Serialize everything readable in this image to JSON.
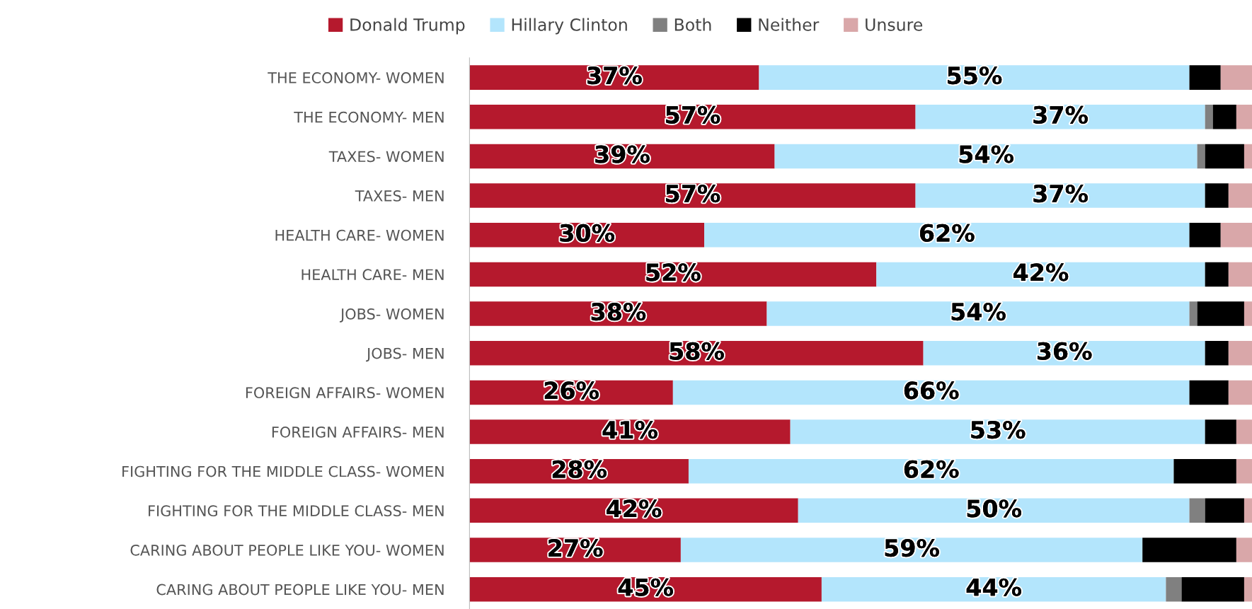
{
  "chart_data": {
    "type": "bar",
    "orientation": "horizontal",
    "stacked": true,
    "legend": "top",
    "tick_labels": "y",
    "xlim": [
      0,
      100
    ],
    "categories": [
      "THE ECONOMY- WOMEN",
      "THE ECONOMY- MEN",
      "TAXES- WOMEN",
      "TAXES- MEN",
      "HEALTH CARE- WOMEN",
      "HEALTH CARE- MEN",
      "JOBS- WOMEN",
      "JOBS- MEN",
      "FOREIGN AFFAIRS- WOMEN",
      "FOREIGN AFFAIRS- MEN",
      "FIGHTING FOR THE MIDDLE CLASS- WOMEN",
      "FIGHTING FOR THE MIDDLE CLASS- MEN",
      "CARING ABOUT PEOPLE LIKE YOU- WOMEN",
      "CARING ABOUT PEOPLE LIKE YOU- MEN"
    ],
    "series": [
      {
        "name": "Donald Trump",
        "color": "#b5192d",
        "values": [
          37,
          57,
          39,
          57,
          30,
          52,
          38,
          58,
          26,
          41,
          28,
          42,
          27,
          45
        ],
        "value_labels": [
          "37%",
          "57%",
          "39%",
          "57%",
          "30%",
          "52%",
          "38%",
          "58%",
          "26%",
          "41%",
          "28%",
          "42%",
          "27%",
          "45%"
        ]
      },
      {
        "name": "Hillary Clinton",
        "color": "#b3e5fc",
        "values": [
          55,
          37,
          54,
          37,
          62,
          42,
          54,
          36,
          66,
          53,
          62,
          50,
          59,
          44
        ],
        "value_labels": [
          "55%",
          "37%",
          "54%",
          "37%",
          "62%",
          "42%",
          "54%",
          "36%",
          "66%",
          "53%",
          "62%",
          "50%",
          "59%",
          "44%"
        ]
      },
      {
        "name": "Both",
        "color": "#808080",
        "values": [
          0,
          1,
          1,
          0,
          0,
          0,
          1,
          0,
          0,
          0,
          0,
          2,
          0,
          2
        ]
      },
      {
        "name": "Neither",
        "color": "#000000",
        "values": [
          4,
          3,
          5,
          3,
          4,
          3,
          6,
          3,
          5,
          4,
          8,
          5,
          12,
          8
        ]
      },
      {
        "name": "Unsure",
        "color": "#d9a7a9",
        "values": [
          4,
          2,
          1,
          3,
          4,
          3,
          1,
          3,
          3,
          2,
          2,
          1,
          2,
          1
        ]
      }
    ]
  }
}
